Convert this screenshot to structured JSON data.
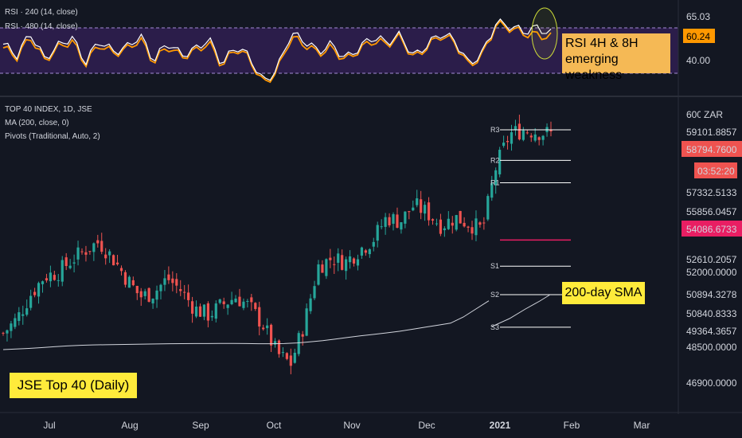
{
  "colors": {
    "background": "#131722",
    "bull": "#26a69a",
    "bear": "#ef5350",
    "rsi_fill": "#2b1d4a",
    "rsi_240": "#ffffff",
    "rsi_480": "#ff9800",
    "ma": "#d1d4dc",
    "pivot_line": "#ffffff",
    "pivot_p": "#e91e63",
    "callout_yellow": "#ffeb3b",
    "callout_orange": "#f5b955"
  },
  "rsi_panel": {
    "legend": [
      "RSI · 240 (14, close)",
      "RSI · 480 (14, close)"
    ],
    "price_labels": [
      "65.03",
      "60.24",
      "40.00"
    ],
    "callout": [
      "RSI 4H & 8H",
      "emerging weakness"
    ]
  },
  "main_panel": {
    "legend": [
      "TOP 40 INDEX, 1D, JSE",
      "MA (200, close, 0)",
      "Pivots (Traditional, Auto, 2)"
    ],
    "currency": "ZAR",
    "price_labels": [
      "600",
      "59101.8857",
      "57332.5133",
      "55856.0457",
      "52610.2057",
      "52000.0000",
      "50894.3278",
      "50840.8333",
      "49364.3657",
      "48500.0000",
      "46900.0000"
    ],
    "badges": [
      {
        "text": "58794.7600",
        "color": "#ef5350"
      },
      {
        "text": "03:52:20",
        "color": "#ef5350"
      },
      {
        "text": "54086.6733",
        "color": "#e91e63"
      }
    ],
    "pivot_labels": [
      "R3",
      "R2",
      "R1",
      "S1",
      "S2",
      "S3"
    ],
    "callout_sma": "200-day SMA",
    "callout_title": "JSE Top 40 (Daily)"
  },
  "chart_data": {
    "type": "candlestick",
    "x_axis_labels": [
      "Jul",
      "Aug",
      "Sep",
      "Oct",
      "Nov",
      "Dec",
      "2021",
      "Feb",
      "Mar"
    ],
    "pivots": {
      "R3": 59500,
      "R2": 58000,
      "R1": 56900,
      "P": 54087,
      "S1": 52800,
      "S2": 51400,
      "S3": 49800
    },
    "close_path": [
      49500,
      50200,
      51400,
      52300,
      52500,
      53100,
      53600,
      54000,
      53200,
      52200,
      51300,
      51500,
      52200,
      51600,
      50700,
      50400,
      50900,
      51300,
      50800,
      49900,
      48500,
      48000,
      50000,
      52800,
      53200,
      53000,
      53600,
      54100,
      55200,
      55000,
      55800,
      55400,
      54800,
      55200,
      54900,
      54600,
      57700,
      59300,
      59500,
      59400,
      59300
    ],
    "ma_path": [
      48700,
      48730,
      48760,
      48800,
      48840,
      48880,
      48910,
      48930,
      48940,
      48950,
      48960,
      48970,
      48980,
      48990,
      48995,
      49000,
      49000,
      49005,
      49005,
      49000,
      48990,
      48990,
      49000,
      49030,
      49080,
      49140,
      49220,
      49300,
      49380,
      49450,
      49520,
      49600,
      49700,
      49800,
      49900,
      50000,
      50300,
      50700,
      51100
    ],
    "rsi_240": [
      56,
      50,
      62,
      48,
      55,
      60,
      46,
      58,
      52,
      54,
      61,
      47,
      57,
      50,
      53,
      59,
      45,
      55,
      49,
      35,
      42,
      62,
      58,
      52,
      56,
      48,
      54,
      60,
      57,
      61,
      49,
      56,
      62,
      58,
      45,
      51,
      68,
      66,
      63,
      65,
      62
    ],
    "rsi_480": [
      54,
      49,
      60,
      47,
      54,
      58,
      45,
      56,
      51,
      53,
      59,
      46,
      55,
      49,
      52,
      57,
      44,
      54,
      48,
      34,
      41,
      60,
      56,
      51,
      54,
      47,
      53,
      58,
      56,
      60,
      48,
      55,
      61,
      57,
      44,
      50,
      67,
      65,
      62,
      61,
      60
    ]
  }
}
